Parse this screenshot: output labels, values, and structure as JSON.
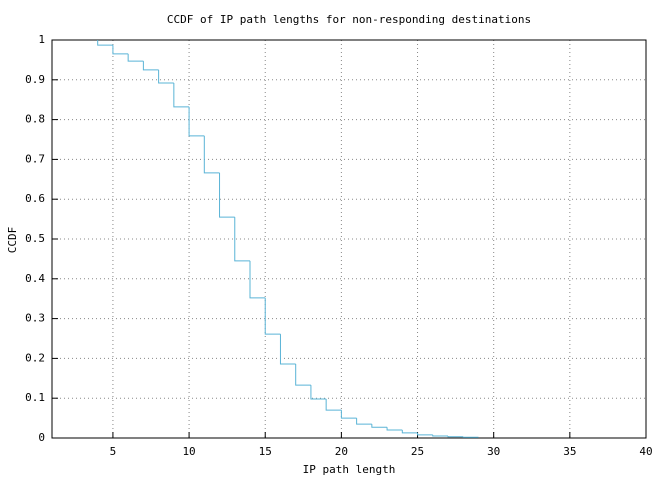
{
  "chart_data": {
    "type": "step",
    "title": "CCDF of IP path lengths for non-responding destinations",
    "x_label": "IP path length",
    "y_label": "CCDF",
    "x": [
      4,
      5,
      6,
      7,
      8,
      9,
      10,
      11,
      12,
      13,
      14,
      15,
      16,
      17,
      18,
      19,
      20,
      21,
      22,
      23,
      24,
      25,
      26,
      27,
      28,
      29
    ],
    "values": [
      1,
      0.987,
      0.965,
      0.947,
      0.925,
      0.892,
      0.832,
      0.759,
      0.666,
      0.555,
      0.445,
      0.352,
      0.261,
      0.186,
      0.133,
      0.098,
      0.07,
      0.05,
      0.035,
      0.027,
      0.02,
      0.013,
      0.008,
      0.005,
      0.003,
      0.002
    ],
    "color": "#5ab4d6",
    "xlim": [
      1,
      40
    ],
    "xticks": [
      5,
      10,
      15,
      20,
      25,
      30,
      35,
      40
    ],
    "ylim": [
      0,
      1
    ],
    "yticks": [
      0,
      0.1,
      0.2,
      0.3,
      0.4,
      0.5,
      0.6,
      0.7,
      0.8,
      0.9,
      1
    ],
    "grid": true
  }
}
